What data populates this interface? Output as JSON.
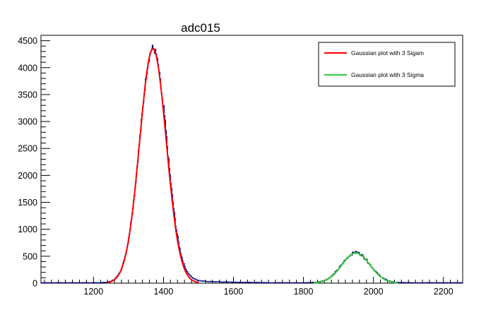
{
  "chart_data": {
    "type": "line",
    "title": "adc015",
    "xlabel": "",
    "ylabel": "",
    "xlim": [
      1050,
      2255
    ],
    "ylim": [
      0,
      4600
    ],
    "x_ticks": [
      1200,
      1400,
      1600,
      1800,
      2000,
      2200
    ],
    "y_ticks": [
      0,
      500,
      1000,
      1500,
      2000,
      2500,
      3000,
      3500,
      4000,
      4500
    ],
    "legend_position": "top-right",
    "histogram": {
      "name": "adc015",
      "color": "#000080",
      "components": [
        {
          "mean": 1370,
          "sigma": 38,
          "amplitude": 4350
        },
        {
          "mean": 1950,
          "sigma": 40,
          "amplitude": 560
        }
      ],
      "tail": {
        "start": 1400,
        "end": 1700,
        "amplitude": 120,
        "decay": 80
      },
      "baseline": 8
    },
    "series": [
      {
        "name": "Gaussian plot with 3 Sigam",
        "color": "#ff0000",
        "mean": 1370,
        "sigma": 38,
        "amplitude": 4350,
        "range": [
          1240,
          1500
        ]
      },
      {
        "name": "Gaussian plot with 3 Sigma",
        "color": "#33cc33",
        "mean": 1950,
        "sigma": 40,
        "amplitude": 560,
        "range": [
          1830,
          2070
        ]
      }
    ]
  }
}
